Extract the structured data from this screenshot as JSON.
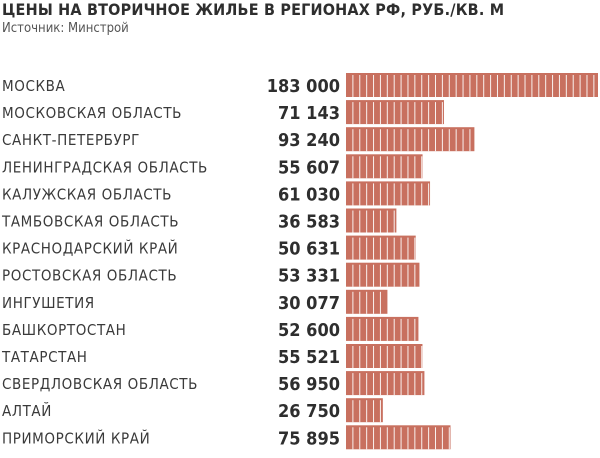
{
  "title": "ЦЕНЫ НА ВТОРИЧНОЕ ЖИЛЬЕ В РЕГИОНАХ РФ, РУБ./КВ. М",
  "subtitle": "Источник: Минстрой",
  "colors": {
    "bar": "#c8705f",
    "bar_divider": "#ffffff",
    "text": "#2e2e2e"
  },
  "chart_data": {
    "type": "bar",
    "orientation": "horizontal",
    "title": "ЦЕНЫ НА ВТОРИЧНОЕ ЖИЛЬЕ В РЕГИОНАХ РФ, РУБ./КВ. М",
    "subtitle": "Источник: Минстрой",
    "categories": [
      "МОСКВА",
      "МОСКОВСКАЯ ОБЛАСТЬ",
      "САНКТ-ПЕТЕРБУРГ",
      "ЛЕНИНГРАДСКАЯ ОБЛАСТЬ",
      "КАЛУЖСКАЯ ОБЛАСТЬ",
      "ТАМБОВСКАЯ ОБЛАСТЬ",
      "КРАСНОДАРСКИЙ КРАЙ",
      "РОСТОВСКАЯ ОБЛАСТЬ",
      "ИНГУШЕТИЯ",
      "БАШКОРТОСТАН",
      "ТАТАРСТАН",
      "СВЕРДЛОВСКАЯ ОБЛАСТЬ",
      "АЛТАЙ",
      "ПРИМОРСКИЙ КРАЙ"
    ],
    "values": [
      183000,
      71143,
      93240,
      55607,
      61030,
      36583,
      50631,
      53331,
      30077,
      52600,
      55521,
      56950,
      26750,
      75895
    ],
    "value_labels": [
      "183 000",
      "71 143",
      "93 240",
      "55 607",
      "61 030",
      "36 583",
      "50 631",
      "53 331",
      "30 077",
      "52 600",
      "55 521",
      "56 950",
      "26 750",
      "75 895"
    ],
    "xlim": [
      0,
      183000
    ],
    "segment_unit": 5000,
    "grid": false,
    "legend": "none"
  }
}
